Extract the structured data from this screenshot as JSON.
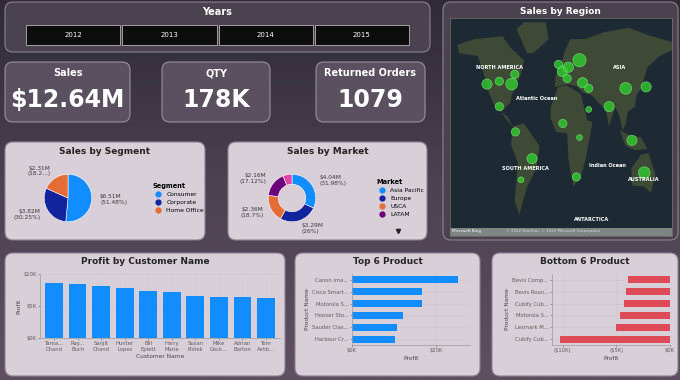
{
  "slicer": {
    "title": "Years",
    "items": [
      "2012",
      "2013",
      "2014",
      "2015"
    ]
  },
  "cards": [
    {
      "label": "Sales",
      "value": "$12.64M"
    },
    {
      "label": "QTY",
      "value": "178K"
    },
    {
      "label": "Returned Orders",
      "value": "1079"
    }
  ],
  "chart_data": [
    {
      "type": "map",
      "title": "Sales by Region",
      "place_labels": [
        "NORTH AMERICA",
        "Atlantic Ocean",
        "ASIA",
        "SOUTH AMERICA",
        "Indian Ocean",
        "AUSTRALIA",
        "ANTARCTICA"
      ],
      "attribution": [
        "Microsoft Bing",
        "© 2022 TomTom, © 2022 Microsoft Corporation"
      ],
      "x": [
        -120,
        -100,
        -80,
        -75,
        -100,
        -74,
        -47,
        -65,
        -4,
        2,
        12,
        10,
        30,
        35,
        45,
        78,
        105,
        138,
        115,
        135,
        3,
        30,
        25,
        45
      ],
      "y": [
        38,
        40,
        38,
        45,
        22,
        4,
        -15,
        -30,
        52,
        47,
        50,
        42,
        55,
        39,
        35,
        22,
        35,
        36,
        -2,
        -25,
        10,
        0,
        -28,
        20
      ],
      "sizes": [
        3,
        2,
        4,
        2,
        2,
        2,
        3,
        1,
        2,
        3,
        3,
        2,
        5,
        3,
        2,
        3,
        4,
        3,
        3,
        4,
        2,
        1,
        2,
        1
      ],
      "color": "#2fd52f",
      "xlim": [
        -180,
        180
      ],
      "ylim": [
        -70,
        85
      ],
      "tick_labels": false
    },
    {
      "type": "pie",
      "title": "Sales by Segment",
      "legend_title": "Segment",
      "categories": [
        "Consumer",
        "Corporate",
        "Home Office"
      ],
      "values": [
        6.51,
        3.82,
        2.31
      ],
      "value_labels": [
        "$6.51M (51.48%)",
        "$3.82M (30.25%)",
        "$2.31M (18.2...)"
      ],
      "colors": [
        "#118DFF",
        "#12239E",
        "#E66C37"
      ],
      "legend": "right",
      "data_labels": true
    },
    {
      "type": "donut",
      "title": "Sales by Market",
      "legend_title": "Market",
      "categories": [
        "Asia Pacific",
        "Europe",
        "USCA",
        "LATAM",
        null
      ],
      "values": [
        4.04,
        3.29,
        2.36,
        2.16,
        0.78
      ],
      "value_labels": [
        "$4.04M (31.98%)",
        "$3.29M (26%)",
        "$2.36M (18.7%)",
        "$2.16M (17.12%)",
        null
      ],
      "colors": [
        "#118DFF",
        "#12239E",
        "#E66C37",
        "#6B007B",
        "#E044A7"
      ],
      "legend": "right",
      "data_labels": true
    },
    {
      "type": "bar",
      "title": "Profit by Customer Name",
      "x_label": "Customer Name",
      "y_label": "Profit",
      "categories": [
        "Tama... Chand",
        "Ray... Buch",
        "Sanjit Chand",
        "Hunter Lopez",
        "Bill Eplett",
        "Harry Marie",
        "Susan Pistek",
        "Mike Gock...",
        "Adrian Barton",
        "Tom Ashb..."
      ],
      "values": [
        8670,
        8450,
        8200,
        7820,
        7400,
        7190,
        6500,
        6480,
        6400,
        6300
      ],
      "color": "#118DFF",
      "ylim": [
        0,
        10000
      ],
      "yticks": [
        {
          "value": 0,
          "label": "$0K"
        },
        {
          "value": 5000,
          "label": "$5K"
        },
        {
          "value": 10000,
          "label": "$10K"
        }
      ],
      "grid": false
    },
    {
      "type": "bar",
      "orientation": "horizontal",
      "title": "Top 6 Product",
      "x_label": "Profit",
      "y_label": "Product Name",
      "categories": [
        "Canon ima...",
        "Cisco Smart...",
        "Motorola S...",
        "Hoover Sto...",
        "Sauder Clas...",
        "Harbour Cr..."
      ],
      "values": [
        25200,
        16700,
        16600,
        12000,
        10600,
        10100
      ],
      "color": "#118DFF",
      "xlim": [
        0,
        28000
      ],
      "xticks": [
        {
          "value": 0,
          "label": "$0K"
        },
        {
          "value": 20000,
          "label": "$20K"
        }
      ],
      "grid": false
    },
    {
      "type": "bar",
      "orientation": "horizontal",
      "title": "Bottom 6 Product",
      "x_label": "Profit",
      "y_label": "Product Name",
      "categories": [
        "Bevis Comp...",
        "Bevis Roun...",
        "Cubify Cub...",
        "Motorola S...",
        "Lesmark M...",
        "Cubify Cub..."
      ],
      "values": [
        -3900,
        -4100,
        -4300,
        -4700,
        -5000,
        -10300
      ],
      "color": "#DE4A55",
      "xlim": [
        -11000,
        0
      ],
      "xticks": [
        {
          "value": -10000,
          "label": "($10K)"
        },
        {
          "value": -5000,
          "label": "($5K)"
        },
        {
          "value": 0,
          "label": "$0K"
        }
      ],
      "grid": false
    }
  ]
}
